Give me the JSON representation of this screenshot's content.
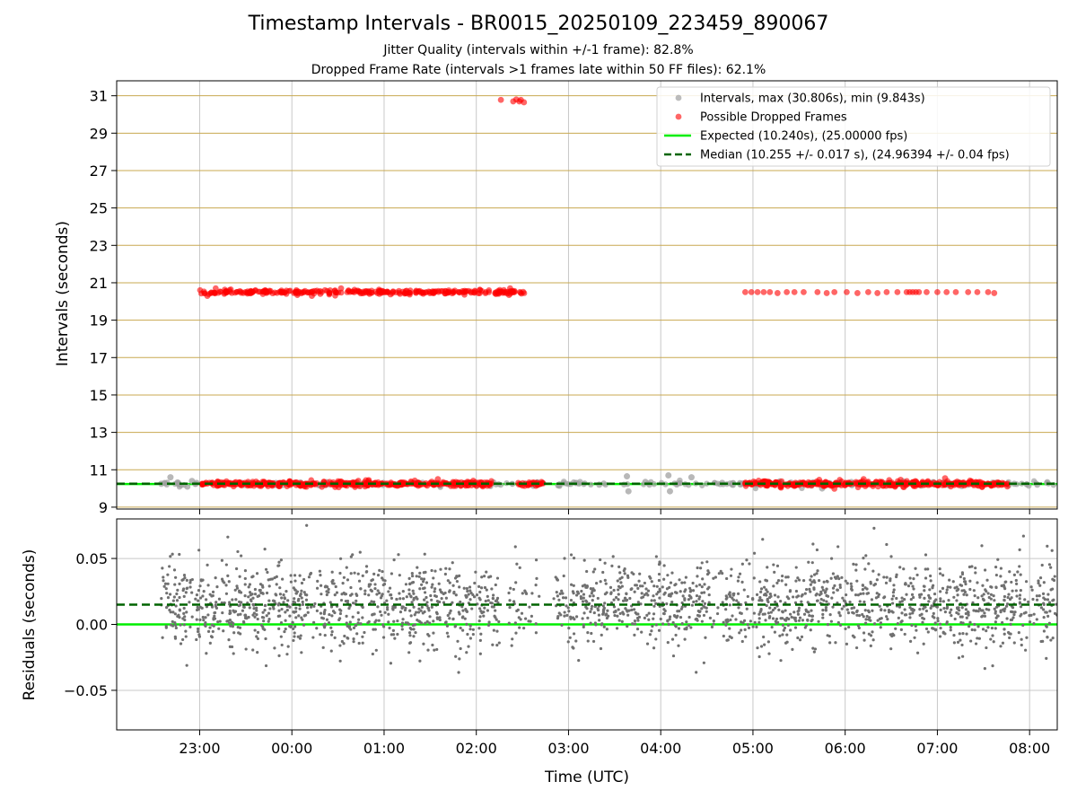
{
  "title": "Timestamp Intervals - BR0015_20250109_223459_890067",
  "subtitle1": "Jitter Quality (intervals within +/-1 frame): 82.8%",
  "subtitle2": "Dropped Frame Rate (intervals >1 frames late within 50 FF files): 62.1%",
  "colors": {
    "intervals": "#a0a0a0",
    "dropped": "#ff0000",
    "expected": "#00ee00",
    "median": "#006400",
    "residuals": "#707070",
    "hgrid_top": "#c8a850",
    "vgrid": "#c8c8c8"
  },
  "chart_data": [
    {
      "type": "scatter",
      "ylabel": "Intervals (seconds)",
      "xlim": [
        "22:06",
        "08:18"
      ],
      "ylim": [
        8.9,
        31.8
      ],
      "x_ticks": [
        "23:00",
        "00:00",
        "01:00",
        "02:00",
        "03:00",
        "04:00",
        "05:00",
        "06:00",
        "07:00",
        "08:00"
      ],
      "y_ticks": [
        9,
        11,
        13,
        15,
        17,
        19,
        21,
        23,
        25,
        27,
        29,
        31
      ],
      "legend_position": "top-right",
      "legend": [
        {
          "series": "intervals",
          "label": "Intervals, max (30.806s), min (9.843s)"
        },
        {
          "series": "dropped",
          "label": "Possible Dropped Frames"
        },
        {
          "series": "expected",
          "label": "Expected (10.240s), (25.00000 fps)"
        },
        {
          "series": "median",
          "label": "Median (10.255 +/- 0.017 s), (24.96394 +/- 0.04 fps)"
        }
      ],
      "expected_value": 10.24,
      "median_value": 10.255,
      "series": [
        {
          "id": "intervals",
          "points": [
            {
              "x": "22:35",
              "y": 10.25
            },
            {
              "x": "22:41",
              "y": 10.6
            },
            {
              "x": "22:46",
              "y": 10.3
            },
            {
              "x": "22:52",
              "y": 10.1
            },
            {
              "x": "22:55",
              "y": 10.4
            },
            {
              "x": "22:58",
              "y": 10.3
            },
            {
              "x": "03:05",
              "y": 10.3
            },
            {
              "x": "03:20",
              "y": 10.2
            },
            {
              "x": "03:38",
              "y": 10.65
            },
            {
              "x": "03:39",
              "y": 9.85
            },
            {
              "x": "03:50",
              "y": 10.35
            },
            {
              "x": "04:05",
              "y": 10.7
            },
            {
              "x": "04:06",
              "y": 9.85
            },
            {
              "x": "04:20",
              "y": 10.6
            },
            {
              "x": "04:40",
              "y": 10.3
            },
            {
              "x": "05:45",
              "y": 10.0
            },
            {
              "x": "07:50",
              "y": 10.25
            },
            {
              "x": "08:05",
              "y": 10.2
            }
          ]
        },
        {
          "id": "dropped",
          "bands": [
            {
              "from": "23:00",
              "to": "02:10",
              "y": 10.25,
              "spread": 0.07,
              "count": 380
            },
            {
              "from": "02:27",
              "to": "02:44",
              "y": 10.25,
              "spread": 0.07,
              "count": 28
            },
            {
              "from": "04:54",
              "to": "07:46",
              "y": 10.25,
              "spread": 0.07,
              "count": 360
            },
            {
              "from": "23:00",
              "to": "02:33",
              "y": 20.5,
              "spread": 0.06,
              "count": 300
            }
          ],
          "points": [
            {
              "x": "23:05",
              "y": 20.3
            },
            {
              "x": "00:13",
              "y": 20.3
            },
            {
              "x": "00:32",
              "y": 20.7
            },
            {
              "x": "02:22",
              "y": 20.7
            },
            {
              "x": "02:16",
              "y": 30.78
            },
            {
              "x": "02:24",
              "y": 30.7
            },
            {
              "x": "02:26",
              "y": 30.8
            },
            {
              "x": "02:28",
              "y": 30.7
            },
            {
              "x": "02:29",
              "y": 30.78
            },
            {
              "x": "02:31",
              "y": 30.65
            },
            {
              "x": "04:55",
              "y": 20.5
            },
            {
              "x": "04:59",
              "y": 20.5
            },
            {
              "x": "05:03",
              "y": 20.5
            },
            {
              "x": "05:07",
              "y": 20.5
            },
            {
              "x": "05:11",
              "y": 20.5
            },
            {
              "x": "05:16",
              "y": 20.45
            },
            {
              "x": "05:22",
              "y": 20.5
            },
            {
              "x": "05:27",
              "y": 20.5
            },
            {
              "x": "05:33",
              "y": 20.5
            },
            {
              "x": "05:42",
              "y": 20.5
            },
            {
              "x": "05:48",
              "y": 20.45
            },
            {
              "x": "05:53",
              "y": 20.5
            },
            {
              "x": "06:01",
              "y": 20.5
            },
            {
              "x": "06:08",
              "y": 20.45
            },
            {
              "x": "06:15",
              "y": 20.5
            },
            {
              "x": "06:21",
              "y": 20.45
            },
            {
              "x": "06:27",
              "y": 20.5
            },
            {
              "x": "06:34",
              "y": 20.5
            },
            {
              "x": "06:40",
              "y": 20.5
            },
            {
              "x": "06:42",
              "y": 20.5
            },
            {
              "x": "06:44",
              "y": 20.5
            },
            {
              "x": "06:46",
              "y": 20.5
            },
            {
              "x": "06:48",
              "y": 20.5
            },
            {
              "x": "06:53",
              "y": 20.5
            },
            {
              "x": "07:00",
              "y": 20.5
            },
            {
              "x": "07:06",
              "y": 20.5
            },
            {
              "x": "07:12",
              "y": 20.5
            },
            {
              "x": "07:20",
              "y": 20.5
            },
            {
              "x": "07:26",
              "y": 20.5
            },
            {
              "x": "07:33",
              "y": 20.5
            },
            {
              "x": "07:37",
              "y": 20.45
            },
            {
              "x": "02:32",
              "y": 10.25
            },
            {
              "x": "06:12",
              "y": 10.5
            },
            {
              "x": "07:05",
              "y": 10.55
            },
            {
              "x": "01:35",
              "y": 10.5
            },
            {
              "x": "00:50",
              "y": 10.45
            }
          ]
        }
      ]
    },
    {
      "type": "scatter",
      "xlabel": "Time (UTC)",
      "ylabel": "Residuals (seconds)",
      "xlim": [
        "22:06",
        "08:18"
      ],
      "ylim": [
        -0.08,
        0.08
      ],
      "x_ticks": [
        "23:00",
        "00:00",
        "01:00",
        "02:00",
        "03:00",
        "04:00",
        "05:00",
        "06:00",
        "07:00",
        "08:00"
      ],
      "y_ticks": [
        {
          "v": 0.05,
          "label": "0.05"
        },
        {
          "v": 0.0,
          "label": "0.00"
        },
        {
          "v": -0.05,
          "label": "−0.05"
        }
      ],
      "expected_value": 0.0,
      "median_value": 0.015,
      "series": [
        {
          "id": "residuals",
          "center": 0.015,
          "spread": 0.016,
          "segments": [
            {
              "from": "22:35",
              "to": "02:15",
              "count": 900
            },
            {
              "from": "02:20",
              "to": "02:42",
              "count": 40
            },
            {
              "from": "02:50",
              "to": "08:18",
              "count": 1250
            }
          ]
        }
      ]
    }
  ]
}
